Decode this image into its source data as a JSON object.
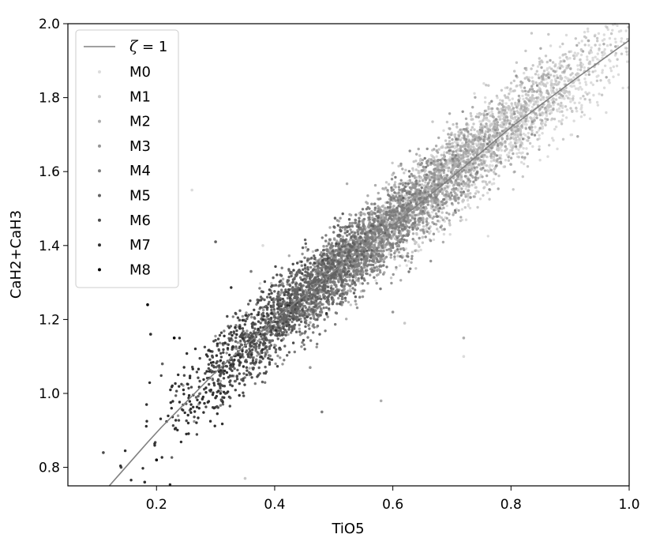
{
  "chart_data": {
    "type": "scatter",
    "xlabel": "TiO5",
    "ylabel": "CaH2+CaH3",
    "xlim": [
      0.05,
      1.0
    ],
    "ylim": [
      0.75,
      2.0
    ],
    "xticks": [
      "0.2",
      "0.4",
      "0.6",
      "0.8",
      "1.0"
    ],
    "yticks": [
      "0.8",
      "1.0",
      "1.2",
      "1.4",
      "1.6",
      "1.8",
      "2.0"
    ],
    "grid": false,
    "legend_position": "top-left",
    "fit_line": {
      "label": "ζ = 1",
      "label_symbol": "ζ",
      "label_rest": " = 1",
      "color": "#808080",
      "x": [
        0.12,
        0.2,
        0.3,
        0.4,
        0.5,
        0.6,
        0.7,
        0.8,
        0.9,
        1.0
      ],
      "y": [
        0.75,
        0.895,
        1.058,
        1.2,
        1.33,
        1.455,
        1.585,
        1.72,
        1.84,
        1.955
      ]
    },
    "series": [
      {
        "name": "M0",
        "color": "#dcdcdc",
        "x_range": [
          0.6,
          1.0
        ],
        "y_center_offset": 0.0,
        "spread_x": 0.07,
        "spread_y": 0.06,
        "count": 900,
        "outliers": [
          [
            0.26,
            1.55
          ],
          [
            0.38,
            1.4
          ],
          [
            0.72,
            1.1
          ]
        ]
      },
      {
        "name": "M1",
        "color": "#c8c8c8",
        "x_range": [
          0.52,
          0.95
        ],
        "y_center_offset": 0.02,
        "spread_x": 0.08,
        "spread_y": 0.06,
        "count": 1100,
        "outliers": [
          [
            0.35,
            0.77
          ],
          [
            0.62,
            1.19
          ]
        ]
      },
      {
        "name": "M2",
        "color": "#adadad",
        "x_range": [
          0.45,
          0.85
        ],
        "y_center_offset": 0.01,
        "spread_x": 0.07,
        "spread_y": 0.055,
        "count": 1100,
        "outliers": [
          [
            0.58,
            0.98
          ],
          [
            0.72,
            1.15
          ]
        ]
      },
      {
        "name": "M3",
        "color": "#959595",
        "x_range": [
          0.4,
          0.75
        ],
        "y_center_offset": 0.0,
        "spread_x": 0.06,
        "spread_y": 0.05,
        "count": 1000,
        "outliers": [
          [
            0.46,
            1.07
          ],
          [
            0.6,
            1.22
          ]
        ]
      },
      {
        "name": "M4",
        "color": "#7d7d7d",
        "x_range": [
          0.38,
          0.65
        ],
        "y_center_offset": 0.0,
        "spread_x": 0.05,
        "spread_y": 0.05,
        "count": 1000,
        "outliers": [
          [
            0.48,
            0.95
          ],
          [
            0.36,
            1.33
          ]
        ]
      },
      {
        "name": "M5",
        "color": "#626262",
        "x_range": [
          0.33,
          0.55
        ],
        "y_center_offset": 0.0,
        "spread_x": 0.045,
        "spread_y": 0.05,
        "count": 700,
        "outliers": [
          [
            0.3,
            1.41
          ],
          [
            0.21,
            1.08
          ]
        ]
      },
      {
        "name": "M6",
        "color": "#4a4a4a",
        "x_range": [
          0.25,
          0.45
        ],
        "y_center_offset": 0.0,
        "spread_x": 0.04,
        "spread_y": 0.06,
        "count": 320,
        "outliers": [
          [
            0.11,
            0.84
          ],
          [
            0.14,
            0.8
          ]
        ]
      },
      {
        "name": "M7",
        "color": "#303030",
        "x_range": [
          0.18,
          0.38
        ],
        "y_center_offset": 0.0,
        "spread_x": 0.04,
        "spread_y": 0.06,
        "count": 150,
        "outliers": [
          [
            0.18,
            0.76
          ],
          [
            0.19,
            1.16
          ]
        ]
      },
      {
        "name": "M8",
        "color": "#000000",
        "x_range": [
          0.18,
          0.24
        ],
        "y_center_offset": 0.0,
        "spread_x": 0.01,
        "spread_y": 0.01,
        "count": 0,
        "outliers": [
          [
            0.185,
            1.24
          ],
          [
            0.23,
            1.15
          ],
          [
            0.2,
            0.82
          ]
        ]
      }
    ]
  }
}
